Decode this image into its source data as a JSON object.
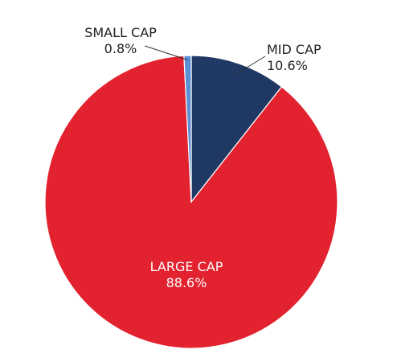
{
  "chart_data": {
    "type": "pie",
    "title": "",
    "start_angle_deg": 0,
    "direction": "clockwise",
    "slices": [
      {
        "label": "MID CAP",
        "value": 10.6,
        "value_label": "10.6%",
        "color": "#1f3864",
        "label_placement": "outside"
      },
      {
        "label": "LARGE CAP",
        "value": 88.6,
        "value_label": "88.6%",
        "color": "#e3222f",
        "label_placement": "inside"
      },
      {
        "label": "SMALL CAP",
        "value": 0.8,
        "value_label": "0.8%",
        "color": "#5b8fd3",
        "label_placement": "outside"
      }
    ]
  }
}
